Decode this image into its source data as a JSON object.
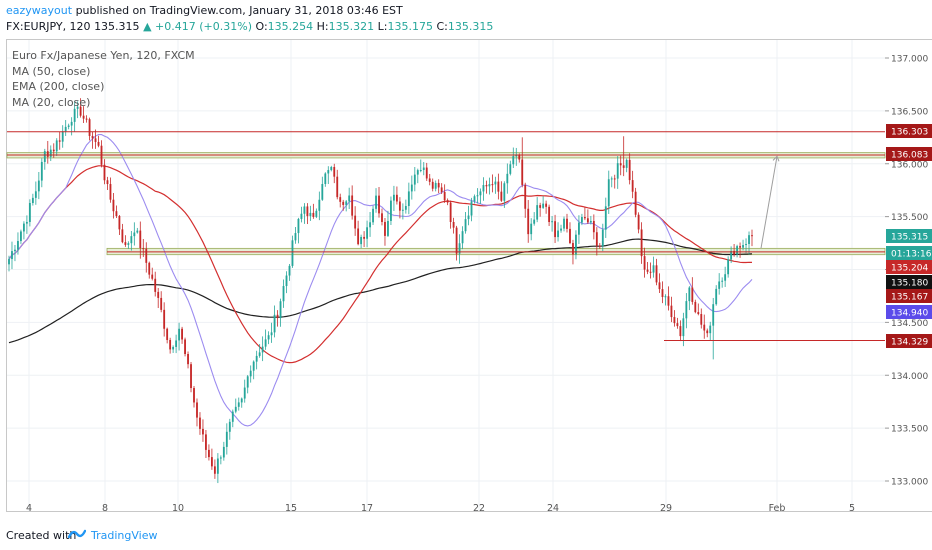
{
  "header": {
    "author": "eazywayout",
    "published_text": "published on TradingView.com, January 31, 2018 03:46 EST",
    "symbol": "FX:EURJPY, 120",
    "last": "135.315",
    "change": "+0.417 (+0.31%)",
    "o_label": "O:",
    "o_val": "135.254",
    "h_label": "H:",
    "h_val": "135.321",
    "l_label": "L:",
    "l_val": "135.175",
    "c_label": "C:",
    "c_val": "135.315"
  },
  "legend": {
    "title": "Euro Fx/Japanese Yen, 120, FXCM",
    "ma50": "MA (50, close)",
    "ema200": "EMA (200, close)",
    "ma20": "MA (20, close)"
  },
  "footer": {
    "created_with": "Created with",
    "brand": "TradingView"
  },
  "colors": {
    "up_candle": "#26a69a",
    "down_candle": "#c62828",
    "ma50": "#d32f2f",
    "ema200": "#212121",
    "ma20": "#9c8cf0",
    "support_line": "#c62828",
    "zone_fill": "#e6efd6",
    "zone_border": "#9aab5a",
    "arrow": "#9e9e9e",
    "brand": "#2196f3"
  },
  "chart_data": {
    "type": "candlestick",
    "symbol": "EURJPY",
    "timeframe": "120",
    "ylim": [
      132.95,
      137.1
    ],
    "y_ticks": [
      "137.000",
      "136.500",
      "136.000",
      "135.500",
      "135.000",
      "134.500",
      "134.000",
      "133.500",
      "133.000"
    ],
    "x_ticks": [
      "4",
      "8",
      "10",
      "15",
      "17",
      "22",
      "24",
      "29",
      "Feb",
      "5"
    ],
    "price_labels": [
      {
        "text": "136.303",
        "kind": "level"
      },
      {
        "text": "136.083",
        "kind": "level"
      },
      {
        "text": "135.315",
        "kind": "last"
      },
      {
        "text": "01:13:16",
        "kind": "timer"
      },
      {
        "text": "135.204",
        "kind": "ma50"
      },
      {
        "text": "135.180",
        "kind": "ema200"
      },
      {
        "text": "135.167",
        "kind": "level"
      },
      {
        "text": "134.940",
        "kind": "ma20"
      },
      {
        "text": "134.329",
        "kind": "level"
      }
    ],
    "levels": [
      {
        "price": 136.303,
        "type": "resistance"
      },
      {
        "price": 136.083,
        "type": "zone",
        "from": 136.055,
        "to": 136.105
      },
      {
        "price": 135.167,
        "type": "zone",
        "from": 135.14,
        "to": 135.2
      },
      {
        "price": 134.329,
        "type": "support"
      }
    ],
    "projection": {
      "from": 135.2,
      "to": 136.07
    },
    "close_path": [
      [
        0,
        135.1
      ],
      [
        3,
        135.3
      ],
      [
        6,
        135.5
      ],
      [
        9,
        135.75
      ],
      [
        12,
        136.1
      ],
      [
        15,
        136.15
      ],
      [
        18,
        136.3
      ],
      [
        21,
        136.45
      ],
      [
        24,
        136.5
      ],
      [
        27,
        136.3
      ],
      [
        30,
        136.15
      ],
      [
        33,
        135.75
      ],
      [
        36,
        135.5
      ],
      [
        39,
        135.2
      ],
      [
        42,
        135.4
      ],
      [
        45,
        135.15
      ],
      [
        48,
        134.9
      ],
      [
        51,
        134.6
      ],
      [
        54,
        134.25
      ],
      [
        57,
        134.45
      ],
      [
        60,
        134.05
      ],
      [
        63,
        133.6
      ],
      [
        66,
        133.3
      ],
      [
        69,
        133.1
      ],
      [
        72,
        133.35
      ],
      [
        75,
        133.6
      ],
      [
        78,
        133.75
      ],
      [
        81,
        134.1
      ],
      [
        84,
        134.25
      ],
      [
        87,
        134.35
      ],
      [
        90,
        134.6
      ],
      [
        93,
        134.95
      ],
      [
        96,
        135.35
      ],
      [
        99,
        135.6
      ],
      [
        102,
        135.45
      ],
      [
        105,
        135.85
      ],
      [
        108,
        135.95
      ],
      [
        111,
        135.6
      ],
      [
        114,
        135.75
      ],
      [
        117,
        135.2
      ],
      [
        120,
        135.4
      ],
      [
        123,
        135.7
      ],
      [
        126,
        135.35
      ],
      [
        129,
        135.75
      ],
      [
        132,
        135.55
      ],
      [
        135,
        135.85
      ],
      [
        138,
        136.0
      ],
      [
        141,
        135.8
      ],
      [
        144,
        135.75
      ],
      [
        147,
        135.65
      ],
      [
        150,
        135.2
      ],
      [
        153,
        135.5
      ],
      [
        156,
        135.7
      ],
      [
        159,
        135.75
      ],
      [
        162,
        135.85
      ],
      [
        165,
        135.65
      ],
      [
        168,
        136.0
      ],
      [
        171,
        136.05
      ],
      [
        174,
        135.3
      ],
      [
        177,
        135.55
      ],
      [
        180,
        135.6
      ],
      [
        183,
        135.3
      ],
      [
        186,
        135.45
      ],
      [
        189,
        135.15
      ],
      [
        192,
        135.55
      ],
      [
        195,
        135.4
      ],
      [
        198,
        135.2
      ],
      [
        201,
        135.85
      ],
      [
        204,
        135.95
      ],
      [
        207,
        136.05
      ],
      [
        210,
        135.55
      ],
      [
        213,
        134.95
      ],
      [
        216,
        135.0
      ],
      [
        219,
        134.75
      ],
      [
        222,
        134.6
      ],
      [
        225,
        134.4
      ],
      [
        228,
        134.85
      ],
      [
        231,
        134.55
      ],
      [
        234,
        134.35
      ],
      [
        237,
        134.85
      ],
      [
        240,
        135.0
      ],
      [
        243,
        135.2
      ],
      [
        246,
        135.25
      ],
      [
        249,
        135.32
      ]
    ]
  }
}
